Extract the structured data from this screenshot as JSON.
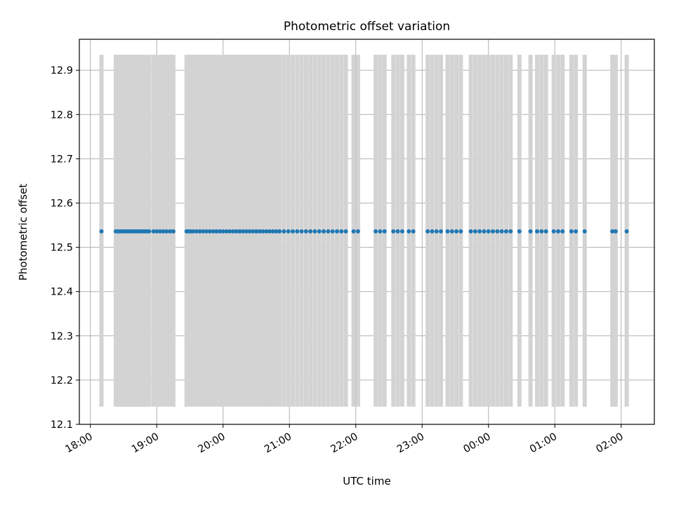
{
  "chart_data": {
    "type": "scatter",
    "title": "Photometric offset variation",
    "xlabel": "UTC time",
    "ylabel": "Photometric offset",
    "x_tick_labels": [
      "18:00",
      "19:00",
      "20:00",
      "21:00",
      "22:00",
      "23:00",
      "00:00",
      "01:00",
      "02:00"
    ],
    "y_tick_labels": [
      "12.1",
      "12.2",
      "12.3",
      "12.4",
      "12.5",
      "12.6",
      "12.7",
      "12.8",
      "12.9"
    ],
    "xlim": [
      "17:50",
      "02:30"
    ],
    "ylim": [
      12.1,
      12.97
    ],
    "grid": true,
    "error_band": {
      "low": 12.14,
      "high": 12.935,
      "color": "#d3d3d3"
    },
    "marker_color": "#1f77b4",
    "points": {
      "y": 12.536,
      "x": [
        "18:10",
        "18:23",
        "18:25",
        "18:27",
        "18:29",
        "18:31",
        "18:33",
        "18:35",
        "18:37",
        "18:39",
        "18:41",
        "18:43",
        "18:45",
        "18:47",
        "18:49",
        "18:51",
        "18:53",
        "18:57",
        "19:00",
        "19:03",
        "19:06",
        "19:09",
        "19:12",
        "19:15",
        "19:27",
        "19:29",
        "19:31",
        "19:33",
        "19:36",
        "19:39",
        "19:42",
        "19:45",
        "19:48",
        "19:51",
        "19:54",
        "19:57",
        "20:00",
        "20:03",
        "20:06",
        "20:09",
        "20:12",
        "20:15",
        "20:18",
        "20:21",
        "20:24",
        "20:27",
        "20:30",
        "20:33",
        "20:36",
        "20:39",
        "20:42",
        "20:45",
        "20:48",
        "20:51",
        "20:55",
        "20:59",
        "21:03",
        "21:07",
        "21:11",
        "21:15",
        "21:19",
        "21:23",
        "21:27",
        "21:31",
        "21:35",
        "21:39",
        "21:43",
        "21:47",
        "21:51",
        "21:58",
        "22:02",
        "22:18",
        "22:22",
        "22:26",
        "22:34",
        "22:38",
        "22:42",
        "22:48",
        "22:52",
        "23:05",
        "23:09",
        "23:13",
        "23:17",
        "23:23",
        "23:27",
        "23:31",
        "23:35",
        "23:44",
        "23:48",
        "23:52",
        "23:56",
        "00:00",
        "00:04",
        "00:08",
        "00:12",
        "00:16",
        "00:20",
        "00:28",
        "00:38",
        "00:44",
        "00:48",
        "00:52",
        "00:59",
        "01:03",
        "01:07",
        "01:15",
        "01:19",
        "01:27",
        "01:52",
        "01:55",
        "02:05"
      ]
    },
    "error_bars_x": [
      "18:10",
      "18:23",
      "18:25",
      "18:27",
      "18:29",
      "18:31",
      "18:33",
      "18:35",
      "18:37",
      "18:39",
      "18:41",
      "18:43",
      "18:45",
      "18:47",
      "18:49",
      "18:51",
      "18:53",
      "18:57",
      "19:00",
      "19:03",
      "19:06",
      "19:09",
      "19:12",
      "19:15",
      "19:27",
      "19:29",
      "19:31",
      "19:33",
      "19:36",
      "19:39",
      "19:42",
      "19:45",
      "19:48",
      "19:51",
      "19:54",
      "19:57",
      "20:00",
      "20:03",
      "20:06",
      "20:09",
      "20:12",
      "20:15",
      "20:18",
      "20:21",
      "20:24",
      "20:27",
      "20:30",
      "20:33",
      "20:36",
      "20:39",
      "20:42",
      "20:45",
      "20:48",
      "20:51",
      "20:55",
      "20:59",
      "21:03",
      "21:07",
      "21:11",
      "21:15",
      "21:19",
      "21:23",
      "21:27",
      "21:31",
      "21:35",
      "21:39",
      "21:43",
      "21:47",
      "21:51",
      "21:58",
      "22:02",
      "22:18",
      "22:22",
      "22:26",
      "22:34",
      "22:38",
      "22:42",
      "22:48",
      "22:52",
      "23:05",
      "23:09",
      "23:13",
      "23:17",
      "23:23",
      "23:27",
      "23:31",
      "23:35",
      "23:44",
      "23:48",
      "23:52",
      "23:56",
      "00:00",
      "00:04",
      "00:08",
      "00:12",
      "00:16",
      "00:20",
      "00:28",
      "00:38",
      "00:44",
      "00:48",
      "00:52",
      "00:59",
      "01:03",
      "01:07",
      "01:15",
      "01:19",
      "01:27",
      "01:52",
      "01:55",
      "02:05"
    ]
  }
}
